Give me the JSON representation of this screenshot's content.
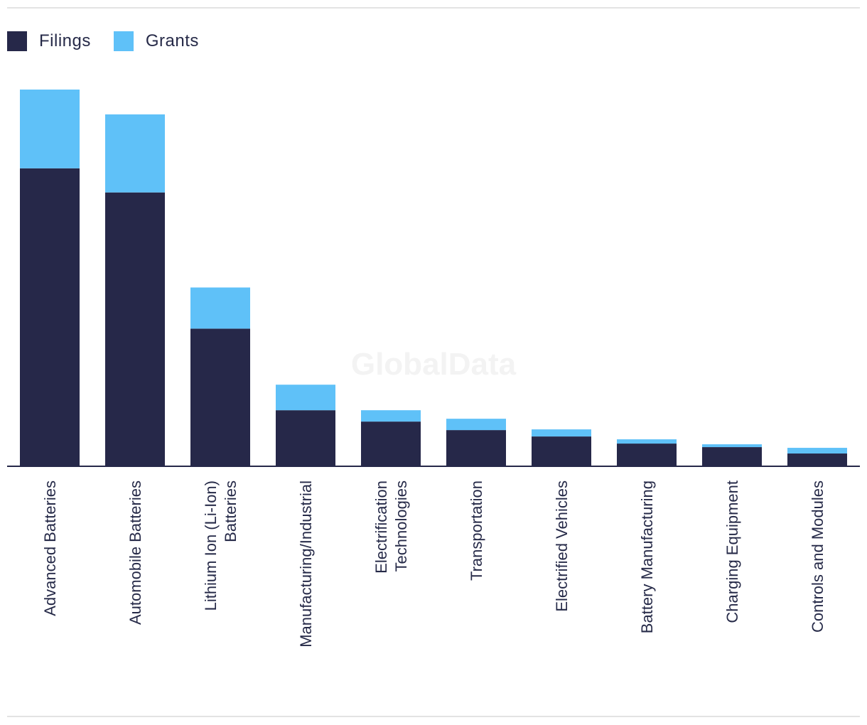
{
  "legend": {
    "filings_label": "Filings",
    "grants_label": "Grants"
  },
  "watermark": "GlobalData",
  "colors": {
    "filings": "#262849",
    "grants": "#5fc1f8",
    "axis": "#262849",
    "text": "#262a48"
  },
  "chart_data": {
    "type": "bar",
    "stacked": true,
    "title": "",
    "xlabel": "",
    "ylabel": "",
    "grid": false,
    "legend_position": "top-left",
    "categories": [
      "Advanced Batteries",
      "Automobile Batteries",
      "Lithium Ion (Li-Ion) Batteries",
      "Manufacturing/Industrial",
      "Electrification Technologies",
      "Transportation",
      "Electrified Vehicles",
      "Battery Manufacturing",
      "Charging Equipment",
      "Controls and Modules"
    ],
    "category_lines": [
      [
        "Advanced Batteries"
      ],
      [
        "Automobile Batteries"
      ],
      [
        "Lithium Ion (Li-Ion)",
        "Batteries"
      ],
      [
        "Manufacturing/Industrial"
      ],
      [
        "Electrification",
        "Technologies"
      ],
      [
        "Transportation"
      ],
      [
        "Electrified Vehicles"
      ],
      [
        "Battery Manufacturing"
      ],
      [
        "Charging Equipment"
      ],
      [
        "Controls and Modules"
      ]
    ],
    "series": [
      {
        "name": "Filings",
        "values": [
          419,
          385,
          193,
          78,
          62,
          50,
          41,
          31,
          26,
          17
        ]
      },
      {
        "name": "Grants",
        "values": [
          111,
          110,
          58,
          36,
          16,
          16,
          10,
          6,
          4,
          8
        ]
      }
    ],
    "ylim": [
      0,
      530
    ]
  }
}
